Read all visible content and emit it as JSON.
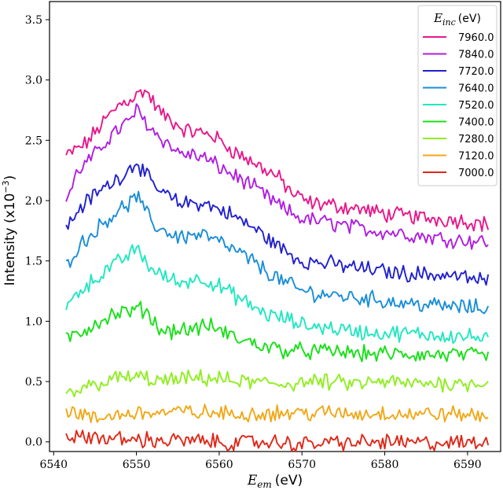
{
  "chart_data": {
    "type": "line",
    "xlabel": "E_em (eV)",
    "xlabel_main": "E",
    "xlabel_sub": "em",
    "xlabel_unit": "(eV)",
    "ylabel": "Intensity (x10^-3)",
    "ylabel_main": "Intensity (x10",
    "ylabel_exp": "−3",
    "ylabel_close": ")",
    "xlim": [
      6539.5,
      6594
    ],
    "ylim": [
      -0.08,
      3.65
    ],
    "xticks": [
      6540,
      6550,
      6560,
      6570,
      6580,
      6590
    ],
    "xtick_labels": [
      "6540",
      "6550",
      "6560",
      "6570",
      "6580",
      "6590"
    ],
    "yticks": [
      0.0,
      0.5,
      1.0,
      1.5,
      2.0,
      2.5,
      3.0,
      3.5
    ],
    "ytick_labels": [
      "0.0",
      "0.5",
      "1.0",
      "1.5",
      "2.0",
      "2.5",
      "3.0",
      "3.5"
    ],
    "legend_title": "E_inc (eV)",
    "legend_title_main": "E",
    "legend_title_sub": "inc",
    "legend_title_unit": "(eV)",
    "legend_position": "upper-right",
    "x_start": 6541.5,
    "x_end": 6592.5,
    "series": [
      {
        "name": "7960.0",
        "color": "#e8178a",
        "points": [
          [
            6541.5,
            2.37
          ],
          [
            6544,
            2.48
          ],
          [
            6546,
            2.65
          ],
          [
            6548,
            2.8
          ],
          [
            6550,
            2.87
          ],
          [
            6551,
            2.92
          ],
          [
            6553,
            2.72
          ],
          [
            6556,
            2.58
          ],
          [
            6559,
            2.55
          ],
          [
            6562,
            2.4
          ],
          [
            6565,
            2.28
          ],
          [
            6567,
            2.2
          ],
          [
            6569,
            2.05
          ],
          [
            6571,
            1.98
          ],
          [
            6574,
            1.96
          ],
          [
            6577,
            1.93
          ],
          [
            6580,
            1.89
          ],
          [
            6583,
            1.87
          ],
          [
            6586,
            1.85
          ],
          [
            6589,
            1.84
          ],
          [
            6592.5,
            1.8
          ]
        ]
      },
      {
        "name": "7840.0",
        "color": "#b01ee0",
        "points": [
          [
            6541.5,
            2.0
          ],
          [
            6543,
            2.25
          ],
          [
            6545,
            2.38
          ],
          [
            6547,
            2.55
          ],
          [
            6549,
            2.65
          ],
          [
            6550,
            2.75
          ],
          [
            6552,
            2.58
          ],
          [
            6555,
            2.4
          ],
          [
            6558,
            2.36
          ],
          [
            6561,
            2.24
          ],
          [
            6564,
            2.12
          ],
          [
            6566,
            2.02
          ],
          [
            6568,
            1.92
          ],
          [
            6570,
            1.85
          ],
          [
            6573,
            1.82
          ],
          [
            6576,
            1.78
          ],
          [
            6579,
            1.75
          ],
          [
            6582,
            1.73
          ],
          [
            6585,
            1.7
          ],
          [
            6588,
            1.68
          ],
          [
            6592.5,
            1.66
          ]
        ]
      },
      {
        "name": "7720.0",
        "color": "#2020d0",
        "points": [
          [
            6541.5,
            1.76
          ],
          [
            6543,
            1.93
          ],
          [
            6545,
            2.05
          ],
          [
            6547,
            2.15
          ],
          [
            6549,
            2.25
          ],
          [
            6550,
            2.33
          ],
          [
            6552,
            2.12
          ],
          [
            6555,
            1.98
          ],
          [
            6558,
            1.98
          ],
          [
            6561,
            1.9
          ],
          [
            6564,
            1.78
          ],
          [
            6566,
            1.68
          ],
          [
            6568,
            1.58
          ],
          [
            6570,
            1.5
          ],
          [
            6573,
            1.48
          ],
          [
            6576,
            1.45
          ],
          [
            6579,
            1.42
          ],
          [
            6582,
            1.4
          ],
          [
            6585,
            1.39
          ],
          [
            6588,
            1.38
          ],
          [
            6592.5,
            1.33
          ]
        ]
      },
      {
        "name": "7640.0",
        "color": "#1a8ed8",
        "points": [
          [
            6541.5,
            1.47
          ],
          [
            6543,
            1.62
          ],
          [
            6545,
            1.75
          ],
          [
            6547,
            1.88
          ],
          [
            6549,
            1.97
          ],
          [
            6550,
            2.04
          ],
          [
            6552,
            1.8
          ],
          [
            6555,
            1.7
          ],
          [
            6558,
            1.72
          ],
          [
            6561,
            1.62
          ],
          [
            6564,
            1.5
          ],
          [
            6566,
            1.4
          ],
          [
            6568,
            1.32
          ],
          [
            6570,
            1.25
          ],
          [
            6573,
            1.22
          ],
          [
            6576,
            1.2
          ],
          [
            6579,
            1.18
          ],
          [
            6582,
            1.15
          ],
          [
            6585,
            1.14
          ],
          [
            6588,
            1.12
          ],
          [
            6592.5,
            1.11
          ]
        ]
      },
      {
        "name": "7520.0",
        "color": "#20e8c0",
        "points": [
          [
            6541.5,
            1.1
          ],
          [
            6543,
            1.25
          ],
          [
            6545,
            1.35
          ],
          [
            6547,
            1.45
          ],
          [
            6549,
            1.55
          ],
          [
            6550,
            1.6
          ],
          [
            6552,
            1.42
          ],
          [
            6555,
            1.32
          ],
          [
            6558,
            1.36
          ],
          [
            6561,
            1.25
          ],
          [
            6564,
            1.12
          ],
          [
            6566,
            1.05
          ],
          [
            6568,
            1.02
          ],
          [
            6570,
            0.97
          ],
          [
            6573,
            0.95
          ],
          [
            6576,
            0.92
          ],
          [
            6579,
            0.9
          ],
          [
            6582,
            0.9
          ],
          [
            6585,
            0.89
          ],
          [
            6588,
            0.88
          ],
          [
            6592.5,
            0.86
          ]
        ]
      },
      {
        "name": "7400.0",
        "color": "#18e018",
        "points": [
          [
            6541.5,
            0.84
          ],
          [
            6543,
            0.9
          ],
          [
            6545,
            0.98
          ],
          [
            6547,
            1.05
          ],
          [
            6549,
            1.08
          ],
          [
            6551,
            1.1
          ],
          [
            6553,
            0.92
          ],
          [
            6556,
            0.93
          ],
          [
            6559,
            0.96
          ],
          [
            6562,
            0.86
          ],
          [
            6565,
            0.8
          ],
          [
            6568,
            0.76
          ],
          [
            6571,
            0.75
          ],
          [
            6574,
            0.75
          ],
          [
            6577,
            0.73
          ],
          [
            6580,
            0.73
          ],
          [
            6583,
            0.72
          ],
          [
            6586,
            0.72
          ],
          [
            6589,
            0.72
          ],
          [
            6592.5,
            0.71
          ]
        ]
      },
      {
        "name": "7280.0",
        "color": "#90ee20",
        "points": [
          [
            6541.5,
            0.38
          ],
          [
            6544,
            0.45
          ],
          [
            6547,
            0.52
          ],
          [
            6550,
            0.54
          ],
          [
            6553,
            0.5
          ],
          [
            6556,
            0.52
          ],
          [
            6559,
            0.53
          ],
          [
            6562,
            0.5
          ],
          [
            6565,
            0.49
          ],
          [
            6568,
            0.48
          ],
          [
            6571,
            0.5
          ],
          [
            6574,
            0.49
          ],
          [
            6577,
            0.48
          ],
          [
            6580,
            0.5
          ],
          [
            6583,
            0.48
          ],
          [
            6586,
            0.49
          ],
          [
            6589,
            0.48
          ],
          [
            6592.5,
            0.5
          ]
        ]
      },
      {
        "name": "7120.0",
        "color": "#f0a818",
        "points": [
          [
            6541.5,
            0.26
          ],
          [
            6543,
            0.24
          ],
          [
            6545,
            0.18
          ],
          [
            6547,
            0.22
          ],
          [
            6550,
            0.24
          ],
          [
            6553,
            0.24
          ],
          [
            6556,
            0.25
          ],
          [
            6559,
            0.24
          ],
          [
            6562,
            0.23
          ],
          [
            6565,
            0.24
          ],
          [
            6568,
            0.24
          ],
          [
            6571,
            0.24
          ],
          [
            6574,
            0.24
          ],
          [
            6577,
            0.23
          ],
          [
            6580,
            0.24
          ],
          [
            6583,
            0.23
          ],
          [
            6586,
            0.23
          ],
          [
            6589,
            0.23
          ],
          [
            6592.5,
            0.21
          ]
        ]
      },
      {
        "name": "7000.0",
        "color": "#e02818",
        "points": [
          [
            6541.5,
            0.07
          ],
          [
            6543,
            0.02
          ],
          [
            6545,
            0.05
          ],
          [
            6547,
            0.02
          ],
          [
            6550,
            0.02
          ],
          [
            6553,
            0.01
          ],
          [
            6556,
            0.01
          ],
          [
            6559,
            0.0
          ],
          [
            6562,
            -0.01
          ],
          [
            6565,
            0.0
          ],
          [
            6568,
            -0.01
          ],
          [
            6571,
            -0.02
          ],
          [
            6574,
            0.0
          ],
          [
            6577,
            -0.01
          ],
          [
            6580,
            0.0
          ],
          [
            6583,
            -0.01
          ],
          [
            6586,
            -0.01
          ],
          [
            6589,
            -0.01
          ],
          [
            6592.5,
            -0.01
          ]
        ]
      }
    ]
  }
}
